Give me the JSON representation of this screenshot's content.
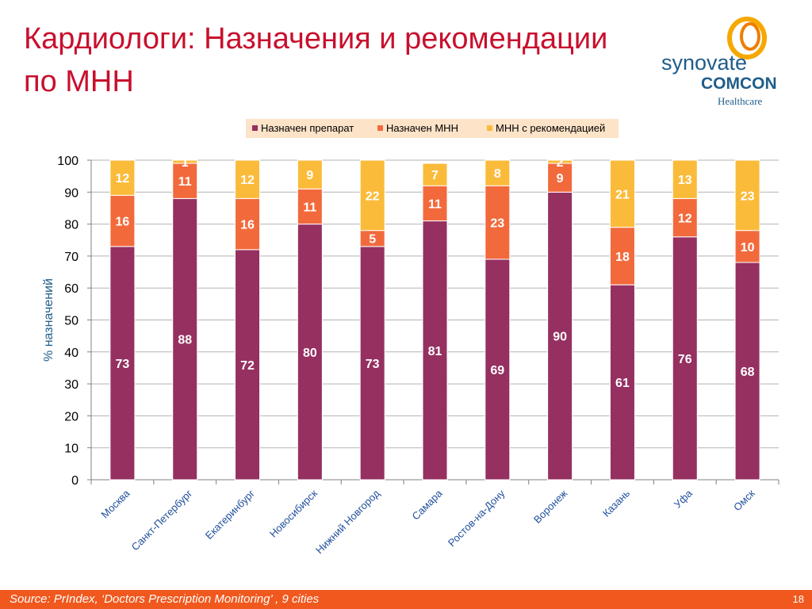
{
  "slide": {
    "title_line1": "Кардиологи: Назначения и рекомендации",
    "title_line2": "по МНН",
    "source": "Source:  PrIndex, ‘Doctors Prescription Monitoring’ , 9 cities",
    "page_number": "18"
  },
  "logo": {
    "line1": "synovate",
    "line2": "COMCON",
    "line3": "Healthcare"
  },
  "colors": {
    "title": "#c8102e",
    "series": [
      "#953060",
      "#f26a3c",
      "#fbbb3a"
    ],
    "footer": "#f0581e",
    "axis_label": "#1f5d8a",
    "category_label": "#1f4e9c"
  },
  "chart_data": {
    "type": "bar",
    "stacked": true,
    "ylabel": "% назначений",
    "ylim": [
      0,
      100
    ],
    "yticks": [
      0,
      10,
      20,
      30,
      40,
      50,
      60,
      70,
      80,
      90,
      100
    ],
    "grid": true,
    "legend_position": "top",
    "categories": [
      "Москва",
      "Санкт-Петербург",
      "Екатеринбург",
      "Новосибирск",
      "Нижний Новгород",
      "Самара",
      "Ростов-на-Дону",
      "Воронеж",
      "Казань",
      "Уфа",
      "Омск"
    ],
    "series": [
      {
        "name": "Назначен препарат",
        "values": [
          73,
          88,
          72,
          80,
          73,
          81,
          69,
          90,
          61,
          76,
          68
        ]
      },
      {
        "name": "Назначен МНН",
        "values": [
          16,
          11,
          16,
          11,
          5,
          11,
          23,
          9,
          18,
          12,
          10
        ]
      },
      {
        "name": "МНН с рекомендацией",
        "values": [
          12,
          1,
          12,
          9,
          22,
          7,
          8,
          2,
          21,
          13,
          23
        ]
      }
    ]
  }
}
